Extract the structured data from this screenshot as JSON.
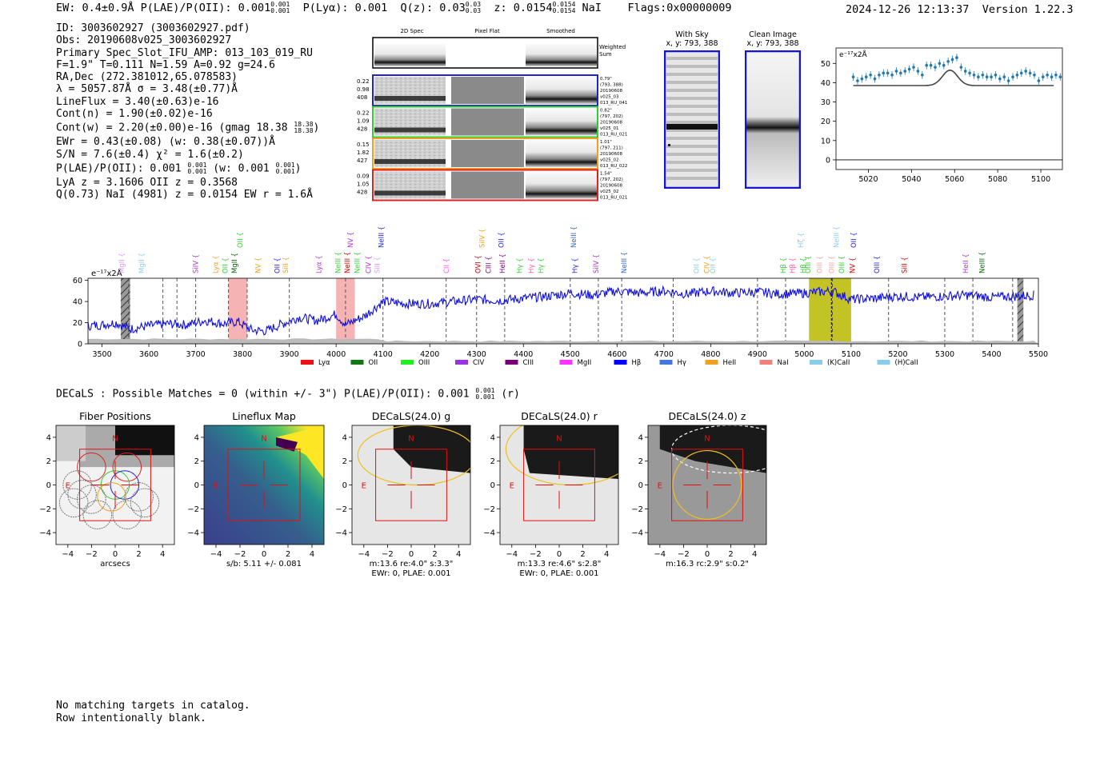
{
  "header": {
    "left": "EW: 0.4±0.9Å  P(LAE)/P(OII): 0.001",
    "left_sup": "0.001",
    "left_sub": "0.001",
    "plya": "P(Lyα): 0.001",
    "qz": "Q(z): 0.03",
    "qz_sup": "0.03",
    "qz_sub": "0.03",
    "z": "z: 0.0154",
    "z_sup": "0.0154",
    "z_sub": "0.0154",
    "z_tail": "NaI",
    "flags": "Flags:0x00000009",
    "timestamp": "2024-12-26 12:13:37",
    "version": "Version 1.22.3"
  },
  "info": {
    "id": "ID: 3003602927 (3003602927.pdf)",
    "obs": "Obs: 20190608v025_3003602927",
    "primary": "Primary Spec_Slot_IFU_AMP: 013_103_019_RU",
    "fiber": "F=1.9\"  T=0.111  N=1.59  A=0.92  g=24.6",
    "radec": "RA,Dec (272.381012,65.078583)",
    "lambda": "λ = 5057.87Å  σ = 3.48(±0.77)Å",
    "lineflux": "LineFlux = 3.40(±0.63)e-16",
    "contn": "Cont(n) = 1.90(±0.02)e-16",
    "contw": "Cont(w) = 2.20(±0.00)e-16 (gmag 18.38",
    "contw_sup": "18.38",
    "contw_sub": "18.38",
    "contw_tail": ")",
    "ewr": "EWr = 0.43(±0.08) (w: 0.38(±0.07))Å",
    "sn": "S/N = 7.6(±0.4)  χ² = 1.6(±0.2)",
    "plae": "P(LAE)/P(OII): 0.001",
    "plae_sup": "0.001",
    "plae_sub": "0.001",
    "plae_w": "(w: 0.001",
    "plae_w_sup": "0.001",
    "plae_w_sub": "0.001",
    "plae_tail": ")",
    "lya": "LyA z = 3.1606  OII z = 0.3568",
    "q": "Q(0.73) NaI (4981) z = 0.0154  EW r = 1.6Å"
  },
  "cutouts": {
    "col_headers": [
      "2D Spec",
      "Pixel Flat",
      "Smoothed"
    ],
    "weighted_label": [
      "Weighted",
      "Sum"
    ],
    "rows": [
      {
        "color": "#2222cc",
        "left": [
          "0.22",
          "0.98",
          "408"
        ],
        "right": [
          "0.79\"",
          "(793, 388)",
          "20190608",
          "v025_03",
          "013_RU_041"
        ]
      },
      {
        "color": "#33cc33",
        "left": [
          "0.22",
          "1.09",
          "428"
        ],
        "right": [
          "0.82\"",
          "(797, 202)",
          "20190608",
          "v025_01",
          "013_RU_021"
        ]
      },
      {
        "color": "#f0a020",
        "left": [
          "0.15",
          "1.82",
          "427"
        ],
        "right": [
          "1.01\"",
          "(797, 211)",
          "20190608",
          "v025_02",
          "013_RU_022"
        ]
      },
      {
        "color": "#dd2222",
        "left": [
          "0.09",
          "1.05",
          "428"
        ],
        "right": [
          "1.54\"",
          "(797, 202)",
          "20190608",
          "v025_02",
          "013_RU_021"
        ]
      }
    ],
    "with_sky_title": "With Sky",
    "with_sky_xy": "x, y: 793, 388",
    "clean_title": "Clean Image",
    "clean_xy": "x, y: 793, 388"
  },
  "chart_data": [
    {
      "type": "line",
      "name": "line-fit-zoom",
      "ylabel": "e⁻¹⁷x2Å",
      "xlim": [
        5005,
        5110
      ],
      "ylim": [
        -5,
        58
      ],
      "xticks": [
        5020,
        5040,
        5060,
        5080,
        5100
      ],
      "yticks": [
        0,
        10,
        20,
        30,
        40,
        50
      ],
      "points": [
        [
          5013,
          43
        ],
        [
          5015,
          41
        ],
        [
          5017,
          42
        ],
        [
          5019,
          43
        ],
        [
          5021,
          44
        ],
        [
          5023,
          42
        ],
        [
          5025,
          44
        ],
        [
          5027,
          45
        ],
        [
          5029,
          45
        ],
        [
          5031,
          44
        ],
        [
          5033,
          46
        ],
        [
          5035,
          45
        ],
        [
          5037,
          46
        ],
        [
          5039,
          47
        ],
        [
          5041,
          48
        ],
        [
          5043,
          46
        ],
        [
          5045,
          44
        ],
        [
          5047,
          49
        ],
        [
          5049,
          49
        ],
        [
          5051,
          48
        ],
        [
          5053,
          50
        ],
        [
          5055,
          49
        ],
        [
          5057,
          51
        ],
        [
          5059,
          52
        ],
        [
          5061,
          53
        ],
        [
          5063,
          48
        ],
        [
          5065,
          46
        ],
        [
          5067,
          45
        ],
        [
          5069,
          44
        ],
        [
          5071,
          43
        ],
        [
          5073,
          44
        ],
        [
          5075,
          43
        ],
        [
          5077,
          43
        ],
        [
          5079,
          44
        ],
        [
          5081,
          42
        ],
        [
          5083,
          43
        ],
        [
          5085,
          41
        ],
        [
          5087,
          43
        ],
        [
          5089,
          44
        ],
        [
          5091,
          45
        ],
        [
          5093,
          46
        ],
        [
          5095,
          45
        ],
        [
          5097,
          44
        ],
        [
          5099,
          41
        ],
        [
          5101,
          43
        ],
        [
          5103,
          44
        ],
        [
          5105,
          43
        ],
        [
          5107,
          44
        ],
        [
          5109,
          43
        ]
      ],
      "fit": {
        "continuum": 38.5,
        "peak": 46.5,
        "center": 5057.87,
        "sigma": 3.48,
        "x_range": [
          5013,
          5106
        ]
      },
      "zero_line": 0
    },
    {
      "type": "line",
      "name": "full-spectrum",
      "ylabel": "e⁻¹⁷x2Å",
      "xlim": [
        3470,
        5500
      ],
      "ylim": [
        0,
        62
      ],
      "xticks": [
        3500,
        3600,
        3700,
        3800,
        3900,
        4000,
        4100,
        4200,
        4300,
        4400,
        4500,
        4600,
        4700,
        4800,
        4900,
        5000,
        5100,
        5200,
        5300,
        5400,
        5500
      ],
      "yticks": [
        0,
        20,
        40,
        60
      ],
      "series_anchors": [
        [
          3470,
          17
        ],
        [
          3500,
          18
        ],
        [
          3530,
          20
        ],
        [
          3560,
          14
        ],
        [
          3600,
          17
        ],
        [
          3640,
          19
        ],
        [
          3680,
          18
        ],
        [
          3720,
          22
        ],
        [
          3760,
          19
        ],
        [
          3790,
          21
        ],
        [
          3820,
          13
        ],
        [
          3850,
          12
        ],
        [
          3880,
          18
        ],
        [
          3920,
          25
        ],
        [
          3960,
          22
        ],
        [
          4000,
          28
        ],
        [
          4020,
          18
        ],
        [
          4060,
          26
        ],
        [
          4100,
          40
        ],
        [
          4150,
          38
        ],
        [
          4200,
          38
        ],
        [
          4250,
          40
        ],
        [
          4300,
          42
        ],
        [
          4350,
          41
        ],
        [
          4400,
          43
        ],
        [
          4450,
          45
        ],
        [
          4500,
          48
        ],
        [
          4550,
          46
        ],
        [
          4600,
          50
        ],
        [
          4650,
          48
        ],
        [
          4700,
          50
        ],
        [
          4750,
          47
        ],
        [
          4800,
          50
        ],
        [
          4850,
          48
        ],
        [
          4900,
          49
        ],
        [
          4950,
          47
        ],
        [
          5000,
          48
        ],
        [
          5060,
          50
        ],
        [
          5100,
          42
        ],
        [
          5150,
          43
        ],
        [
          5200,
          45
        ],
        [
          5250,
          44
        ],
        [
          5300,
          45
        ],
        [
          5350,
          46
        ],
        [
          5400,
          44
        ],
        [
          5450,
          45
        ],
        [
          5490,
          46
        ]
      ],
      "noise_scale": 4.5,
      "shaded": [
        {
          "from": 3770,
          "to": 3810,
          "color": "#f4a6a6"
        },
        {
          "from": 4000,
          "to": 4040,
          "color": "#f4a6a6"
        },
        {
          "from": 5010,
          "to": 5100,
          "color": "#b8b800"
        }
      ],
      "hatched": [
        {
          "from": 3540,
          "to": 3560
        },
        {
          "from": 5455,
          "to": 5468
        }
      ],
      "vlines": [
        3557,
        3630,
        3660,
        3700,
        3770,
        3810,
        3900,
        4020,
        4100,
        4235,
        4300,
        4360,
        4500,
        4560,
        4610,
        4720,
        4900,
        4960,
        5060,
        5180,
        5300,
        5360,
        5445
      ],
      "line_labels": [
        {
          "text": "MgII",
          "x": 3547,
          "color": "#d0a0f0",
          "row": 2
        },
        {
          "text": "MgII",
          "x": 3590,
          "color": "#87ceeb",
          "row": 2
        },
        {
          "text": "SiIV",
          "x": 3705,
          "color": "#aa33cc",
          "row": 2
        },
        {
          "text": "Lyα",
          "x": 3748,
          "color": "#f0a020",
          "row": 2
        },
        {
          "text": "OII",
          "x": 3768,
          "color": "#33cc33",
          "row": 2
        },
        {
          "text": "MgII",
          "x": 3788,
          "color": "#006600",
          "row": 2
        },
        {
          "text": "OII",
          "x": 3800,
          "color": "#33cc33",
          "row": 1
        },
        {
          "text": "NV",
          "x": 3838,
          "color": "#f0a020",
          "row": 2
        },
        {
          "text": "OII",
          "x": 3879,
          "color": "#1f1fdd",
          "row": 2
        },
        {
          "text": "SiII",
          "x": 3897,
          "color": "#f0a020",
          "row": 2
        },
        {
          "text": "Lyα",
          "x": 3968,
          "color": "#aa33cc",
          "row": 2
        },
        {
          "text": "NeIII",
          "x": 4009,
          "color": "#33cc33",
          "row": 2
        },
        {
          "text": "NeIII",
          "x": 4029,
          "color": "#cc0000",
          "row": 2
        },
        {
          "text": "NeIII",
          "x": 4050,
          "color": "#33cc33",
          "row": 2
        },
        {
          "text": "NV",
          "x": 4036,
          "color": "#aa33cc",
          "row": 1
        },
        {
          "text": "CIV",
          "x": 4074,
          "color": "#aa33cc",
          "row": 2
        },
        {
          "text": "SiII",
          "x": 4093,
          "color": "#d0a0f0",
          "row": 2
        },
        {
          "text": "NeIII",
          "x": 4101,
          "color": "#1f1fdd",
          "row": 1
        },
        {
          "text": "CII",
          "x": 4241,
          "color": "#ff55ff",
          "row": 2
        },
        {
          "text": "SiIV",
          "x": 4317,
          "color": "#f0a020",
          "row": 1
        },
        {
          "text": "OVI",
          "x": 4308,
          "color": "#cc0000",
          "row": 2
        },
        {
          "text": "CIII",
          "x": 4330,
          "color": "#800080",
          "row": 2
        },
        {
          "text": "OII",
          "x": 4358,
          "color": "#1f1fdd",
          "row": 1
        },
        {
          "text": "HeII",
          "x": 4360,
          "color": "#800080",
          "row": 2
        },
        {
          "text": "Hγ",
          "x": 4397,
          "color": "#33cc33",
          "row": 2
        },
        {
          "text": "Hγ",
          "x": 4422,
          "color": "#ff5599",
          "row": 2
        },
        {
          "text": "Hγ",
          "x": 4442,
          "color": "#33cc33",
          "row": 2
        },
        {
          "text": "Hγ",
          "x": 4515,
          "color": "#1f1fdd",
          "row": 2
        },
        {
          "text": "NeIII",
          "x": 4512,
          "color": "#3366cc",
          "row": 1
        },
        {
          "text": "SiIV",
          "x": 4560,
          "color": "#aa33cc",
          "row": 2
        },
        {
          "text": "NeIII",
          "x": 4620,
          "color": "#3366cc",
          "row": 2
        },
        {
          "text": "OII",
          "x": 4775,
          "color": "#87ceeb",
          "row": 2
        },
        {
          "text": "CIV",
          "x": 4797,
          "color": "#f0a020",
          "row": 2
        },
        {
          "text": "OII",
          "x": 4810,
          "color": "#87ceeb",
          "row": 2
        },
        {
          "text": "Hβ",
          "x": 4960,
          "color": "#33cc33",
          "row": 2
        },
        {
          "text": "Hβ",
          "x": 4980,
          "color": "#ff5599",
          "row": 2
        },
        {
          "text": "Hβ",
          "x": 5003,
          "color": "#33cc33",
          "row": 2
        },
        {
          "text": "Hζ",
          "x": 4998,
          "color": "#87ceeb",
          "row": 1
        },
        {
          "text": "OIII",
          "x": 5013,
          "color": "#33cc33",
          "row": 2
        },
        {
          "text": "OIII",
          "x": 5038,
          "color": "#f4a6a6",
          "row": 2
        },
        {
          "text": "OIII",
          "x": 5063,
          "color": "#f4a6a6",
          "row": 2
        },
        {
          "text": "OIII",
          "x": 5085,
          "color": "#33cc33",
          "row": 2
        },
        {
          "text": "NeIII",
          "x": 5074,
          "color": "#87ceeb",
          "row": 1
        },
        {
          "text": "OII",
          "x": 5110,
          "color": "#1f1fdd",
          "row": 1
        },
        {
          "text": "NV",
          "x": 5108,
          "color": "#cc0000",
          "row": 2
        },
        {
          "text": "OIII",
          "x": 5160,
          "color": "#1f1fdd",
          "row": 2
        },
        {
          "text": "SiII",
          "x": 5219,
          "color": "#cc0000",
          "row": 2
        },
        {
          "text": "HeII",
          "x": 5350,
          "color": "#aa33cc",
          "row": 2
        },
        {
          "text": "NeIII",
          "x": 5385,
          "color": "#006600",
          "row": 2
        }
      ],
      "legend": [
        {
          "label": "Lyα",
          "color": "#ee1111"
        },
        {
          "label": "OII",
          "color": "#117711"
        },
        {
          "label": "OIII",
          "color": "#22ee22"
        },
        {
          "label": "CIV",
          "color": "#9933dd"
        },
        {
          "label": "CIII",
          "color": "#770077"
        },
        {
          "label": "MgII",
          "color": "#ff33ff"
        },
        {
          "label": "Hβ",
          "color": "#0000ff"
        },
        {
          "label": "Hγ",
          "color": "#4477dd"
        },
        {
          "label": "HeII",
          "color": "#f0a020"
        },
        {
          "label": "NaI",
          "color": "#f08080"
        },
        {
          "label": "(K)CaII",
          "color": "#87ceeb"
        },
        {
          "label": "(H)CaII",
          "color": "#87ceeb"
        }
      ]
    }
  ],
  "decals": {
    "summary": "DECaLS : Possible Matches = 0 (within +/- 3\")  P(LAE)/P(OII): 0.001",
    "summary_sup": "0.001",
    "summary_sub": "0.001",
    "summary_tail": "(r)",
    "ticks": [
      "−4",
      "−2",
      "0",
      "2",
      "4"
    ],
    "yticks": [
      "4",
      "2",
      "0",
      "−2",
      "−4"
    ],
    "north": "N",
    "east": "E",
    "panels": [
      {
        "title": "Fiber Positions",
        "caption": [
          "arcsecs"
        ]
      },
      {
        "title": "Lineflux Map",
        "caption": [
          "s/b: 5.11 +/- 0.081"
        ]
      },
      {
        "title": "DECaLS(24.0) g",
        "caption": [
          "m:13.6  re:4.0\"  s:3.3\"",
          "EWr: 0, PLAE: 0.001"
        ]
      },
      {
        "title": "DECaLS(24.0) r",
        "caption": [
          "m:13.3  re:4.6\"  s:2.8\"",
          "EWr: 0, PLAE: 0.001"
        ]
      },
      {
        "title": "DECaLS(24.0) z",
        "caption": [
          "m:16.3 rc:2.9\"  s:0.2\""
        ]
      }
    ]
  },
  "footer": {
    "line1": "No matching targets in catalog.",
    "line2": "Row intentionally blank."
  }
}
